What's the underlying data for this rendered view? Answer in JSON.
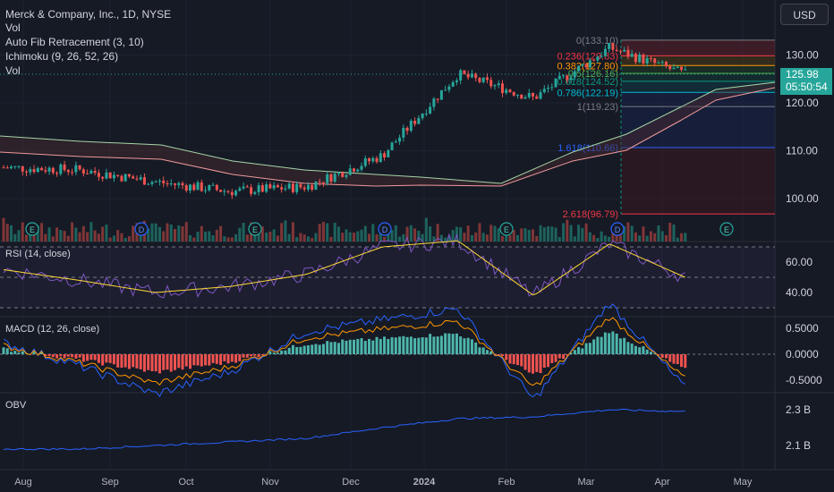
{
  "header": {
    "title": "Merck & Company, Inc., 1D, NYSE",
    "indicators": [
      "Vol",
      "Auto Fib Retracement (3, 10)",
      "Ichimoku (9, 26, 52, 26)",
      "Vol"
    ],
    "currency": "USD",
    "last_price": "125.98",
    "countdown": "05:50:54"
  },
  "colors": {
    "background": "#161a25",
    "up": "#26a69a",
    "down": "#ef5350",
    "accent_blue": "#2962ff",
    "rsi": "#7e57c2",
    "signal": "#ff9800"
  },
  "price_axis": {
    "ticks": [
      "130.00",
      "120.00",
      "110.00",
      "100.00"
    ]
  },
  "x_axis": {
    "ticks": [
      "Aug",
      "Sep",
      "Oct",
      "Nov",
      "Dec",
      "2024",
      "Feb",
      "Mar",
      "Apr",
      "May"
    ]
  },
  "fib": {
    "labels": [
      "0(133.10)",
      "0.236(129.83)",
      "0.382(127.80)",
      "0.5(126.16)",
      "0.618(124.52)",
      "0.786(122.19)",
      "1(119.23)",
      "1.618(110.66)",
      "2.618(96.79)"
    ],
    "levels": [
      133.1,
      129.83,
      127.8,
      126.16,
      124.52,
      122.19,
      119.23,
      110.66,
      96.79
    ]
  },
  "events": {
    "labels": [
      "E",
      "D",
      "E",
      "D",
      "E",
      "D",
      "E"
    ]
  },
  "rsi": {
    "label": "RSI (14, close)",
    "ticks": [
      "60.00",
      "40.00"
    ]
  },
  "macd": {
    "label": "MACD (12, 26, close)",
    "ticks": [
      "0.5000",
      "0.0000",
      "-0.5000"
    ]
  },
  "obv": {
    "label": "OBV",
    "ticks": [
      "2.3 B",
      "2.1 B"
    ]
  },
  "chart_data": [
    {
      "type": "line",
      "title": "Merck & Company, Inc., 1D, NYSE",
      "x": [
        "Aug",
        "Sep",
        "Oct",
        "Nov",
        "Dec",
        "2024",
        "Feb",
        "Mar",
        "Apr",
        "May"
      ],
      "series": [
        {
          "name": "Close",
          "values": [
            106.5,
            106.0,
            103.5,
            101.5,
            102.5,
            109.0,
            126.0,
            121.0,
            131.5,
            125.98
          ]
        }
      ],
      "ylim": [
        94,
        136
      ],
      "grid": true
    },
    {
      "type": "line",
      "title": "RSI (14, close)",
      "series": [
        {
          "name": "RSI",
          "values": [
            55,
            48,
            40,
            44,
            52,
            70,
            74,
            38,
            72,
            50
          ]
        }
      ],
      "ylim": [
        30,
        70
      ]
    },
    {
      "type": "bar",
      "title": "MACD (12, 26, close)",
      "series": [
        {
          "name": "Histogram",
          "values": [
            0.1,
            -0.1,
            -0.35,
            -0.15,
            0.2,
            0.3,
            0.4,
            -0.4,
            0.45,
            -0.3
          ]
        }
      ],
      "ylim": [
        -0.7,
        0.7
      ]
    },
    {
      "type": "line",
      "title": "OBV",
      "series": [
        {
          "name": "OBV",
          "values": [
            2.08,
            2.08,
            2.1,
            2.12,
            2.14,
            2.2,
            2.25,
            2.26,
            2.3,
            2.29
          ]
        }
      ],
      "ylim": [
        2.05,
        2.35
      ]
    }
  ]
}
